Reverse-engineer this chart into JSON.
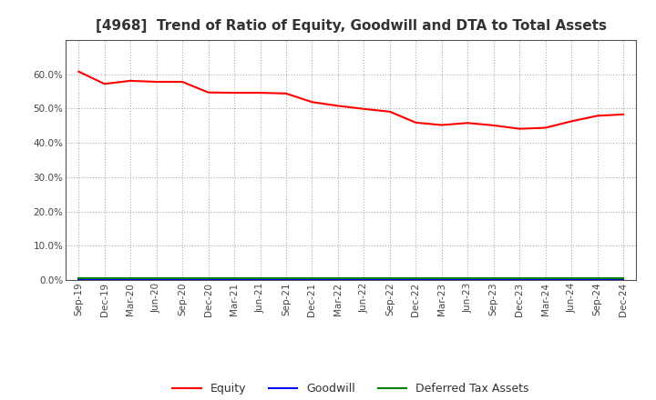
{
  "title": "[4968]  Trend of Ratio of Equity, Goodwill and DTA to Total Assets",
  "x_labels": [
    "Sep-19",
    "Dec-19",
    "Mar-20",
    "Jun-20",
    "Sep-20",
    "Dec-20",
    "Mar-21",
    "Jun-21",
    "Sep-21",
    "Dec-21",
    "Mar-22",
    "Jun-22",
    "Sep-22",
    "Dec-22",
    "Mar-23",
    "Jun-23",
    "Sep-23",
    "Dec-23",
    "Mar-24",
    "Jun-24",
    "Sep-24",
    "Dec-24"
  ],
  "equity": [
    0.608,
    0.572,
    0.581,
    0.578,
    0.578,
    0.547,
    0.546,
    0.546,
    0.544,
    0.519,
    0.508,
    0.499,
    0.491,
    0.459,
    0.452,
    0.458,
    0.451,
    0.441,
    0.444,
    0.463,
    0.479,
    0.483
  ],
  "goodwill": [
    0.002,
    0.002,
    0.002,
    0.002,
    0.002,
    0.002,
    0.002,
    0.002,
    0.002,
    0.002,
    0.002,
    0.002,
    0.002,
    0.002,
    0.002,
    0.002,
    0.002,
    0.002,
    0.002,
    0.002,
    0.002,
    0.002
  ],
  "dta": [
    0.005,
    0.005,
    0.005,
    0.005,
    0.005,
    0.005,
    0.005,
    0.005,
    0.005,
    0.005,
    0.005,
    0.005,
    0.005,
    0.005,
    0.005,
    0.005,
    0.005,
    0.005,
    0.005,
    0.005,
    0.005,
    0.005
  ],
  "equity_color": "#FF0000",
  "goodwill_color": "#0000FF",
  "dta_color": "#008000",
  "ylim": [
    0.0,
    0.7
  ],
  "yticks": [
    0.0,
    0.1,
    0.2,
    0.3,
    0.4,
    0.5,
    0.6
  ],
  "background_color": "#FFFFFF",
  "grid_color": "#AAAAAA",
  "title_fontsize": 11,
  "tick_fontsize": 7.5,
  "legend_labels": [
    "Equity",
    "Goodwill",
    "Deferred Tax Assets"
  ]
}
